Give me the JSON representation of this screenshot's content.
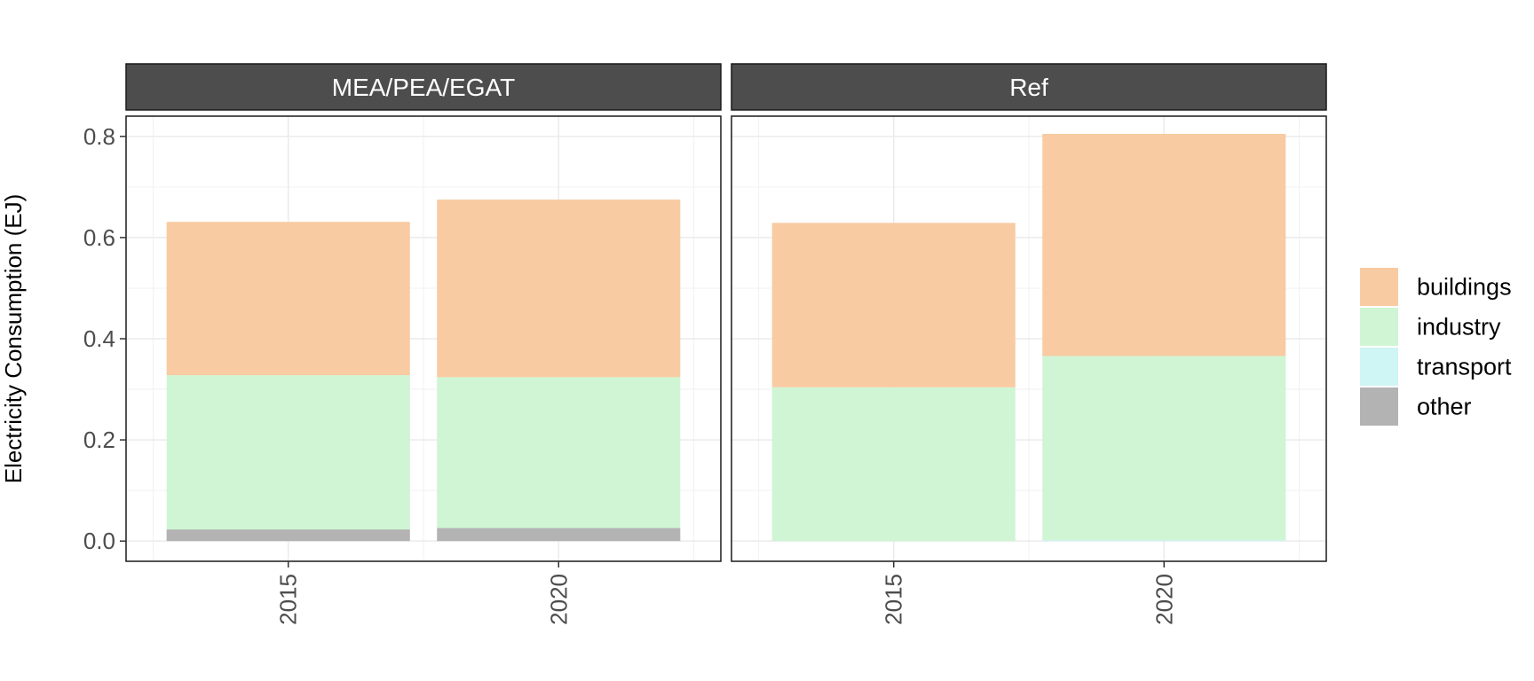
{
  "chart_data": {
    "type": "bar",
    "stacked": true,
    "faceted": true,
    "ylabel": "Electricity Consumption (EJ)",
    "xlabel": "",
    "ylim": [
      -0.04,
      0.84
    ],
    "yticks": [
      0.0,
      0.2,
      0.4,
      0.6,
      0.8
    ],
    "ytick_labels": [
      "0.0",
      "0.2",
      "0.4",
      "0.6",
      "0.8"
    ],
    "categories": [
      "2015",
      "2020"
    ],
    "grid": true,
    "legend_position": "right",
    "series": [
      {
        "key": "other",
        "name": "other",
        "color": "#b3b3b3"
      },
      {
        "key": "transport",
        "name": "transport",
        "color": "#cff5f5"
      },
      {
        "key": "industry",
        "name": "industry",
        "color": "#cff5d4"
      },
      {
        "key": "buildings",
        "name": "buildings",
        "color": "#f8cba2"
      }
    ],
    "legend_order": [
      "buildings",
      "industry",
      "transport",
      "other"
    ],
    "panels": [
      {
        "title": "MEA/PEA/EGAT",
        "values": {
          "other": [
            0.023,
            0.026
          ],
          "transport": [
            0.0,
            0.0
          ],
          "industry": [
            0.305,
            0.298
          ],
          "buildings": [
            0.303,
            0.351
          ]
        }
      },
      {
        "title": "Ref",
        "values": {
          "other": [
            0.0,
            0.0
          ],
          "transport": [
            0.0,
            0.002
          ],
          "industry": [
            0.304,
            0.364
          ],
          "buildings": [
            0.325,
            0.439
          ]
        }
      }
    ]
  }
}
